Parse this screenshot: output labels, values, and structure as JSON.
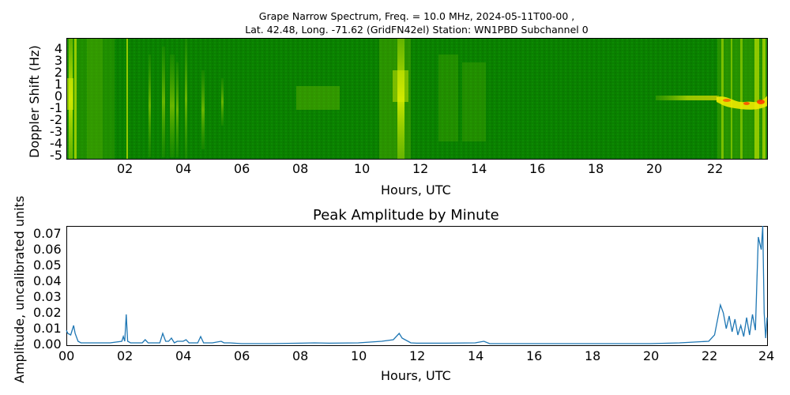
{
  "figure": {
    "suptitle_line1": "Grape Narrow Spectrum, Freq. = 10.0 MHz, 2024-05-11T00-00 ,",
    "suptitle_line2": "Lat.  42.48, Long. -71.62 (GridFN42el) Station: WN1PBD Subchannel 0"
  },
  "spectrogram": {
    "ylabel": "Doppler Shift (Hz)",
    "xlabel": "Hours, UTC",
    "yticks": [
      "4",
      "3",
      "2",
      "1",
      "0",
      "-1",
      "-2",
      "-3",
      "-4",
      "-5"
    ],
    "xticks": [
      "02",
      "04",
      "06",
      "08",
      "10",
      "12",
      "14",
      "16",
      "18",
      "20",
      "22"
    ],
    "colors": {
      "background": "#0a8000",
      "mid": "#66b800",
      "bright": "#e8f000",
      "peak": "#ff3000"
    }
  },
  "amplitude": {
    "title": "Peak Amplitude by Minute",
    "ylabel": "Amplitude, uncalibrated units",
    "xlabel": "Hours, UTC",
    "yticks": [
      "0.07",
      "0.06",
      "0.05",
      "0.04",
      "0.03",
      "0.02",
      "0.01",
      "0.00"
    ],
    "xticks": [
      "00",
      "02",
      "04",
      "06",
      "08",
      "10",
      "12",
      "14",
      "16",
      "18",
      "20",
      "22",
      "24"
    ],
    "line_color": "#1f77b4"
  },
  "chart_data": [
    {
      "type": "heatmap",
      "title": "Grape Narrow Spectrum, Freq. = 10.0 MHz, 2024-05-11T00-00 , Lat. 42.48, Long. -71.62 (GridFN42el) Station: WN1PBD Subchannel 0",
      "xlabel": "Hours, UTC",
      "ylabel": "Doppler Shift (Hz)",
      "xlim": [
        0,
        24
      ],
      "ylim": [
        -5,
        5
      ],
      "x_ticks": [
        "02",
        "04",
        "06",
        "08",
        "10",
        "12",
        "14",
        "16",
        "18",
        "20",
        "22"
      ],
      "y_ticks": [
        4,
        3,
        2,
        1,
        0,
        -1,
        -2,
        -3,
        -4,
        -5
      ],
      "colormap": "green-yellow-red",
      "features": [
        {
          "hours": [
            0.0,
            0.4
          ],
          "doppler": [
            -5,
            5
          ],
          "intensity": "high",
          "note": "bright broadband streaks near start"
        },
        {
          "hours": [
            2.0,
            2.1
          ],
          "doppler": [
            -5,
            5
          ],
          "intensity": "medium",
          "note": "vertical line at ~02"
        },
        {
          "hours": [
            3.2,
            4.7
          ],
          "doppler": [
            -3,
            3
          ],
          "intensity": "medium",
          "note": "scattered vertical streaks"
        },
        {
          "hours": [
            7.8,
            9.5
          ],
          "doppler": [
            -1,
            1
          ],
          "intensity": "low",
          "note": "faint band near 0 Hz"
        },
        {
          "hours": [
            10.8,
            11.8
          ],
          "doppler": [
            -5,
            5
          ],
          "intensity": "high",
          "note": "bright vertical band ~11.4 h"
        },
        {
          "hours": [
            13.0,
            14.5
          ],
          "doppler": [
            -3,
            3
          ],
          "intensity": "low"
        },
        {
          "hours": [
            20.5,
            22.2
          ],
          "doppler": [
            -0.5,
            0.5
          ],
          "intensity": "medium",
          "note": "carrier trace near 0 Hz"
        },
        {
          "hours": [
            22.2,
            23.8
          ],
          "doppler": [
            -1,
            0.5
          ],
          "intensity": "peak",
          "note": "strong carrier with red peaks and vertical streaks"
        }
      ]
    },
    {
      "type": "line",
      "title": "Peak Amplitude by Minute",
      "xlabel": "Hours, UTC",
      "ylabel": "Amplitude, uncalibrated units",
      "xlim": [
        0,
        24
      ],
      "ylim": [
        0,
        0.075
      ],
      "x_ticks": [
        "00",
        "02",
        "04",
        "06",
        "08",
        "10",
        "12",
        "14",
        "16",
        "18",
        "20",
        "22",
        "24"
      ],
      "y_ticks": [
        0.0,
        0.01,
        0.02,
        0.03,
        0.04,
        0.05,
        0.06,
        0.07
      ],
      "grid": false,
      "series": [
        {
          "name": "Peak Amplitude",
          "color": "#1f77b4",
          "x": [
            0.0,
            0.05,
            0.15,
            0.25,
            0.3,
            0.4,
            0.5,
            1.0,
            1.5,
            1.9,
            1.95,
            2.0,
            2.05,
            2.1,
            2.2,
            2.6,
            2.7,
            2.8,
            3.2,
            3.3,
            3.4,
            3.5,
            3.6,
            3.7,
            3.8,
            4.0,
            4.1,
            4.2,
            4.5,
            4.6,
            4.7,
            4.8,
            5.0,
            5.3,
            5.4,
            5.6,
            6.0,
            7.0,
            8.0,
            8.5,
            9.0,
            10.0,
            10.8,
            11.2,
            11.4,
            11.5,
            11.6,
            11.8,
            12.0,
            13.0,
            14.0,
            14.3,
            14.5,
            16.0,
            18.0,
            20.0,
            21.0,
            21.5,
            22.0,
            22.2,
            22.4,
            22.5,
            22.6,
            22.7,
            22.8,
            22.9,
            23.0,
            23.1,
            23.2,
            23.3,
            23.4,
            23.5,
            23.6,
            23.65,
            23.7,
            23.8,
            23.85,
            23.9,
            23.95,
            24.0
          ],
          "y": [
            0.009,
            0.007,
            0.006,
            0.012,
            0.007,
            0.002,
            0.001,
            0.001,
            0.001,
            0.002,
            0.005,
            0.002,
            0.019,
            0.002,
            0.001,
            0.001,
            0.003,
            0.001,
            0.001,
            0.007,
            0.002,
            0.002,
            0.004,
            0.001,
            0.002,
            0.002,
            0.003,
            0.001,
            0.001,
            0.005,
            0.001,
            0.001,
            0.001,
            0.002,
            0.001,
            0.001,
            0.0005,
            0.0005,
            0.0008,
            0.001,
            0.0008,
            0.001,
            0.002,
            0.003,
            0.007,
            0.004,
            0.003,
            0.001,
            0.0008,
            0.0008,
            0.001,
            0.002,
            0.0005,
            0.0005,
            0.0005,
            0.0005,
            0.001,
            0.0015,
            0.002,
            0.006,
            0.025,
            0.02,
            0.01,
            0.018,
            0.008,
            0.016,
            0.006,
            0.012,
            0.005,
            0.017,
            0.006,
            0.019,
            0.009,
            0.04,
            0.068,
            0.06,
            0.075,
            0.02,
            0.004,
            0.017
          ]
        }
      ]
    }
  ]
}
